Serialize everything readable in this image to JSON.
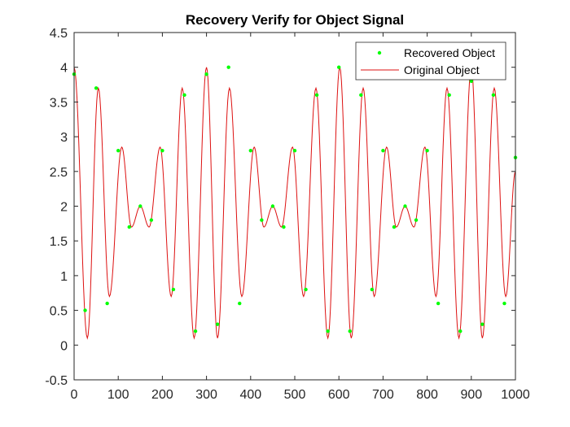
{
  "chart_data": {
    "type": "line",
    "title": "Recovery Verify for Object Signal",
    "xlabel": "",
    "ylabel": "",
    "xlim": [
      0,
      1000
    ],
    "ylim": [
      -0.5,
      4.5
    ],
    "x_ticks": [
      "0",
      "100",
      "200",
      "300",
      "400",
      "500",
      "600",
      "700",
      "800",
      "900",
      "1000"
    ],
    "y_ticks": [
      "-0.5",
      "0",
      "0.5",
      "1",
      "1.5",
      "2",
      "2.5",
      "3",
      "3.5",
      "4",
      "4.5"
    ],
    "x_tick_values": [
      0,
      100,
      200,
      300,
      400,
      500,
      600,
      700,
      800,
      900,
      1000
    ],
    "y_tick_values": [
      -0.5,
      0,
      0.5,
      1,
      1.5,
      2,
      2.5,
      3,
      3.5,
      4,
      4.5
    ],
    "grid": false,
    "legend_position": "top-right",
    "series": [
      {
        "name": "Recovered Object",
        "style": "markers",
        "color": "#00ff00",
        "marker": "dot",
        "x": [
          0,
          25,
          50,
          75,
          100,
          125,
          150,
          175,
          200,
          225,
          250,
          275,
          300,
          325,
          350,
          375,
          400,
          425,
          450,
          475,
          500,
          525,
          550,
          575,
          600,
          625,
          650,
          675,
          700,
          725,
          750,
          775,
          800,
          825,
          850,
          875,
          900,
          925,
          950,
          975,
          1000
        ],
        "values": [
          3.9,
          0.5,
          3.7,
          0.6,
          2.8,
          1.7,
          2.0,
          1.8,
          2.8,
          0.8,
          3.6,
          0.2,
          3.9,
          0.3,
          4.0,
          0.6,
          2.8,
          1.8,
          2.0,
          1.7,
          2.8,
          0.8,
          3.6,
          0.2,
          4.0,
          0.2,
          3.6,
          0.8,
          2.8,
          1.7,
          2.0,
          1.8,
          2.8,
          0.6,
          3.6,
          0.2,
          3.8,
          0.3,
          3.6,
          0.6,
          2.7
        ]
      },
      {
        "name": "Original Object",
        "style": "line",
        "color": "#dd1111",
        "x": [
          0,
          30,
          55,
          80,
          108,
          130,
          150,
          170,
          195,
          220,
          245,
          272,
          300,
          325,
          352,
          380,
          408,
          430,
          450,
          470,
          495,
          520,
          548,
          575,
          602,
          628,
          655,
          680,
          708,
          730,
          750,
          770,
          795,
          820,
          845,
          872,
          900,
          925,
          952,
          978,
          1000
        ],
        "values": [
          4.0,
          0.1,
          3.7,
          0.7,
          2.85,
          1.7,
          2.0,
          1.7,
          2.85,
          0.7,
          3.7,
          0.1,
          4.0,
          0.1,
          3.7,
          0.7,
          2.85,
          1.7,
          2.0,
          1.7,
          2.85,
          0.7,
          3.7,
          0.1,
          4.0,
          0.1,
          3.7,
          0.7,
          2.85,
          1.7,
          2.0,
          1.7,
          2.85,
          0.7,
          3.7,
          0.1,
          4.0,
          0.1,
          3.7,
          0.7,
          2.5
        ]
      }
    ]
  }
}
